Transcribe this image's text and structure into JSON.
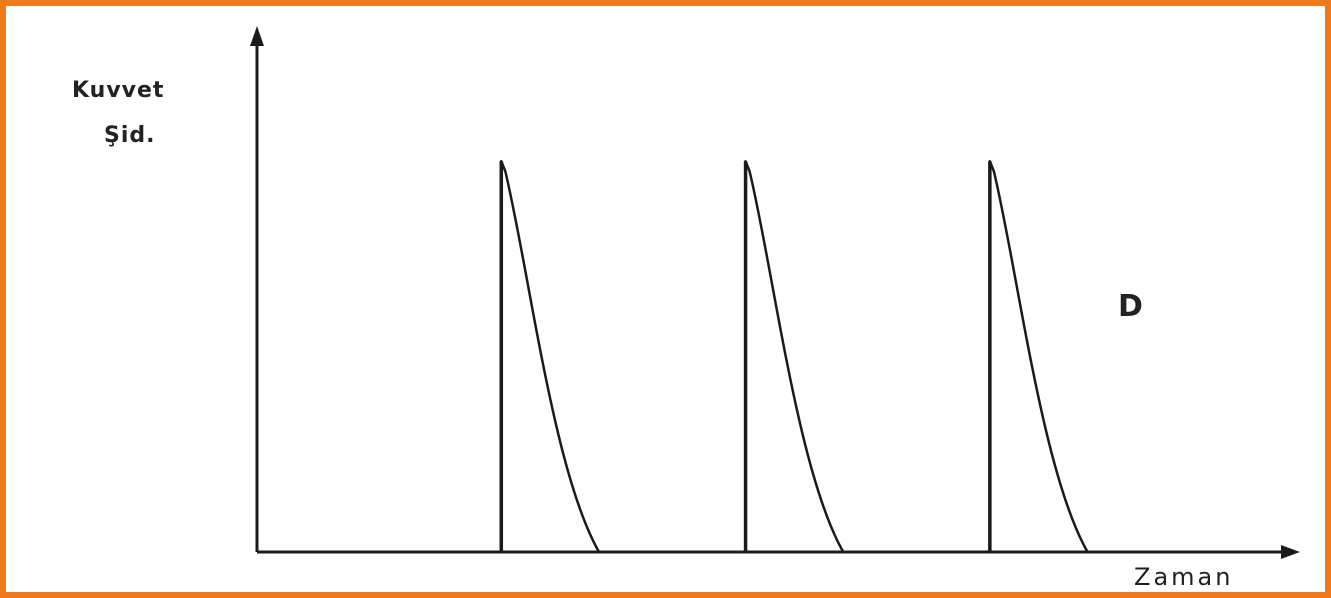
{
  "colors": {
    "border": "#f07a1a",
    "ink": "#1a1a1a",
    "background": "#ffffff"
  },
  "chart_data": {
    "type": "line",
    "title": "",
    "ylabel_line1": "Kuvvet",
    "ylabel_line2": "Şid.",
    "xlabel": "Zaman",
    "panel_label": "D",
    "grid": false,
    "legend": "none",
    "axis_ticks": false,
    "pulse_shape": "instant rise, exponential-like decay to baseline",
    "pulses": [
      {
        "start": 1,
        "peak": 1,
        "end": 1.4
      },
      {
        "start": 2,
        "peak": 1,
        "end": 2.4
      },
      {
        "start": 3,
        "peak": 1,
        "end": 3.4
      }
    ],
    "xlim": [
      0,
      4.2
    ],
    "ylim": [
      0,
      1.3
    ]
  }
}
